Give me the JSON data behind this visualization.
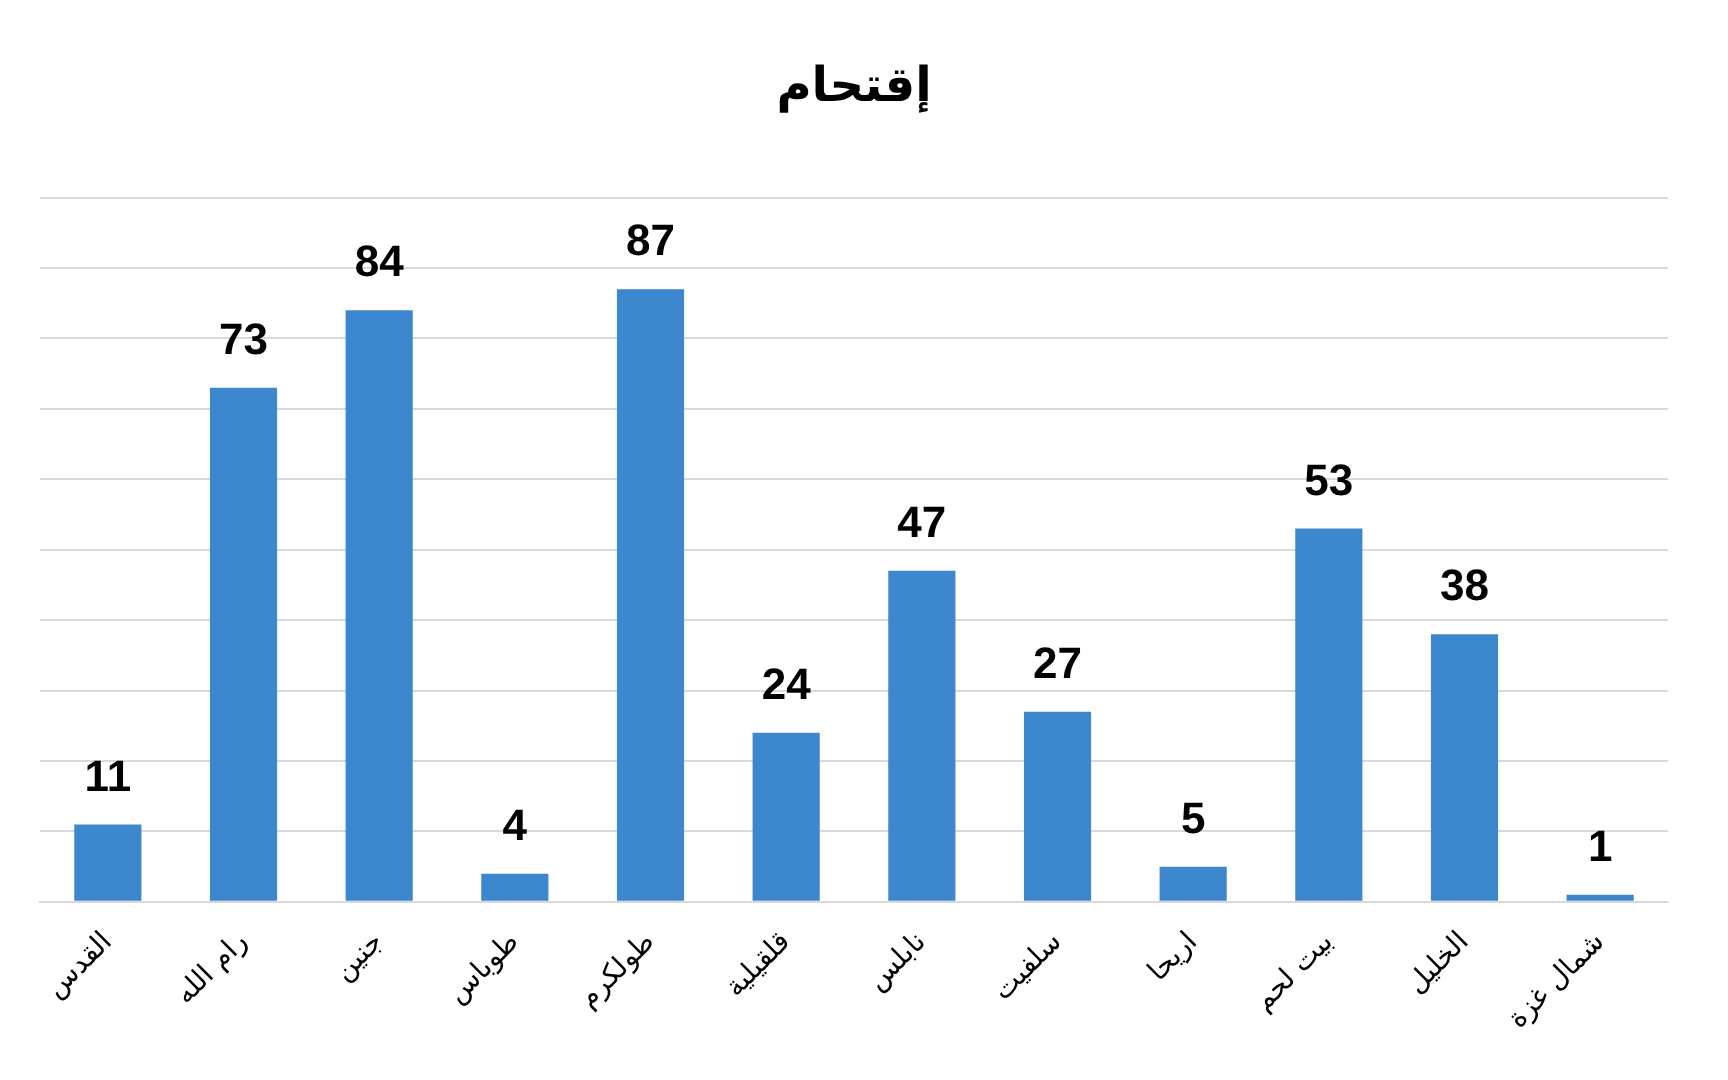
{
  "chart_data": {
    "type": "bar",
    "title": "إقتحام",
    "categories": [
      "القدس",
      "رام الله",
      "جنين",
      "طوباس",
      "طولكرم",
      "قلقيلية",
      "نابلس",
      "سلفيت",
      "اريحا",
      "بيت لحم",
      "الخليل",
      "شمال غزة"
    ],
    "values": [
      11,
      73,
      84,
      4,
      87,
      24,
      47,
      27,
      5,
      53,
      38,
      1
    ],
    "color": "#3d87cf",
    "ylim": [
      0,
      100
    ],
    "yticks": [
      0,
      10,
      20,
      30,
      40,
      50,
      60,
      70,
      80,
      90,
      100
    ],
    "grid": "y",
    "tick_labels": "x",
    "data_labels": true,
    "legend": false
  }
}
